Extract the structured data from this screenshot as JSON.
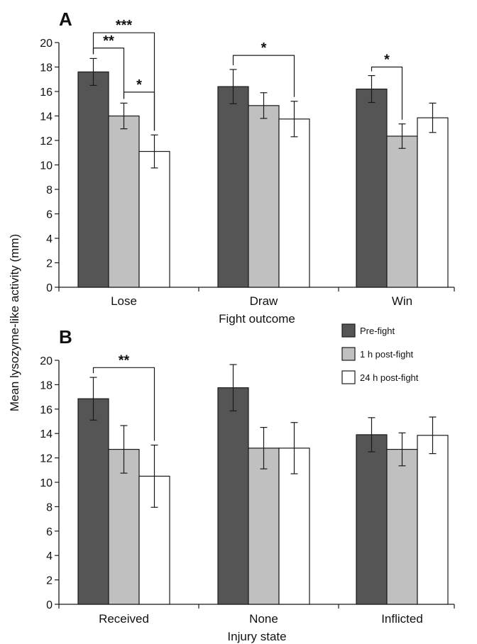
{
  "chart_data": [
    {
      "type": "bar",
      "panel_label": "A",
      "xlabel": "Fight outcome",
      "ylabel": "Mean lysozyme-like activity (mm)",
      "ylim": [
        0,
        20
      ],
      "yticks": [
        "0",
        "2",
        "4",
        "6",
        "8",
        "10",
        "12",
        "14",
        "16",
        "18",
        "20"
      ],
      "categories": [
        "Lose",
        "Draw",
        "Win"
      ],
      "series": [
        {
          "name": "Pre-fight",
          "color": "#555555",
          "values": [
            17.6,
            16.4,
            16.2
          ],
          "errors": [
            1.1,
            1.4,
            1.1
          ]
        },
        {
          "name": "1 h post-fight",
          "color": "#c0c0c0",
          "values": [
            14.0,
            14.85,
            12.35
          ],
          "errors": [
            1.05,
            1.05,
            1.0
          ]
        },
        {
          "name": "24 h post-fight",
          "color": "#ffffff",
          "values": [
            11.1,
            13.75,
            13.85
          ],
          "errors": [
            1.35,
            1.45,
            1.2
          ]
        }
      ],
      "significance": [
        {
          "category": 0,
          "from": 0,
          "to": 1,
          "label": "**",
          "level": 19.55
        },
        {
          "category": 0,
          "from": 0,
          "to": 2,
          "label": "***",
          "level": 20.8
        },
        {
          "category": 0,
          "from": 1,
          "to": 2,
          "label": "*",
          "level": 15.95
        },
        {
          "category": 1,
          "from": 0,
          "to": 2,
          "label": "*",
          "level": 18.95
        },
        {
          "category": 2,
          "from": 0,
          "to": 1,
          "label": "*",
          "level": 18.0
        }
      ]
    },
    {
      "type": "bar",
      "panel_label": "B",
      "xlabel": "Injury state",
      "ylabel": "",
      "ylim": [
        0,
        20
      ],
      "yticks": [
        "0",
        "2",
        "4",
        "6",
        "8",
        "10",
        "12",
        "14",
        "16",
        "18",
        "20"
      ],
      "categories": [
        "Received",
        "None",
        "Inflicted"
      ],
      "series": [
        {
          "name": "Pre-fight",
          "color": "#555555",
          "values": [
            16.85,
            17.75,
            13.9
          ],
          "errors": [
            1.75,
            1.9,
            1.4
          ]
        },
        {
          "name": "1 h post-fight",
          "color": "#c0c0c0",
          "values": [
            12.7,
            12.8,
            12.7
          ],
          "errors": [
            1.95,
            1.7,
            1.35
          ]
        },
        {
          "name": "24 h post-fight",
          "color": "#ffffff",
          "values": [
            10.5,
            12.8,
            13.85
          ],
          "errors": [
            2.55,
            2.1,
            1.5
          ]
        }
      ],
      "significance": [
        {
          "category": 0,
          "from": 0,
          "to": 2,
          "label": "**",
          "level": 19.4
        }
      ]
    }
  ],
  "legend": {
    "placement": "top-right of panel B",
    "items": [
      {
        "label": "Pre-fight",
        "color": "#555555"
      },
      {
        "label": "1 h post-fight",
        "color": "#c0c0c0"
      },
      {
        "label": "24 h post-fight",
        "color": "#ffffff"
      }
    ]
  }
}
